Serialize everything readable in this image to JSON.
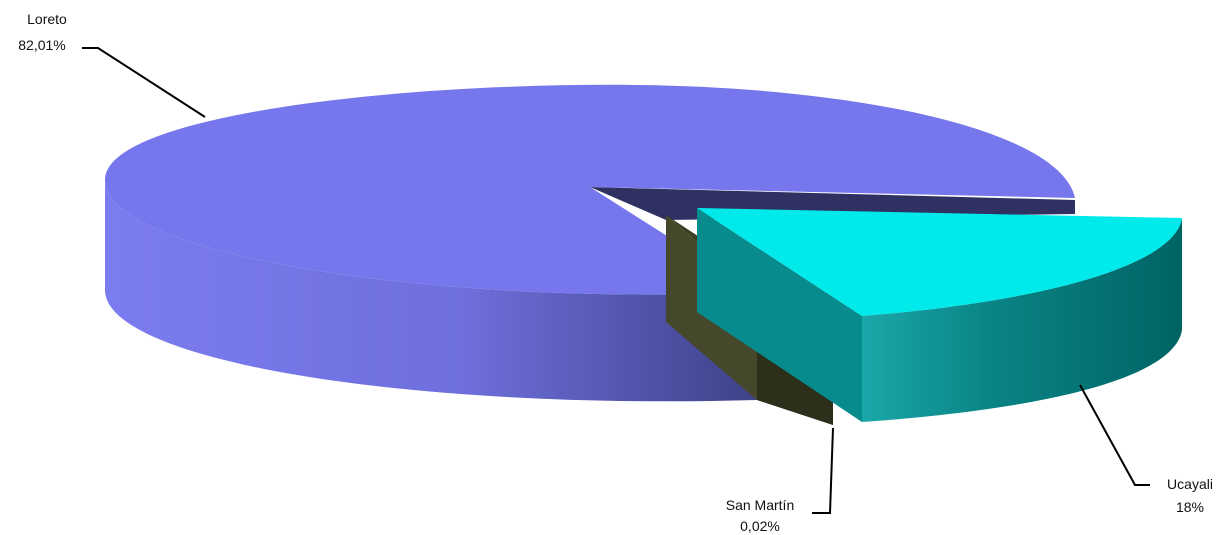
{
  "chart_data": {
    "type": "pie",
    "title": "",
    "three_d": true,
    "legend": "none",
    "slices": [
      {
        "name": "Loreto",
        "label": "82,01%",
        "value": 82.01,
        "color": "#7677ec",
        "exploded": false
      },
      {
        "name": "Ucayali",
        "label": "18%",
        "value": 18,
        "color": "#00eaec",
        "exploded": true
      },
      {
        "name": "San Martín",
        "label": "0,02%",
        "value": 0.02,
        "color": "#45482a",
        "exploded": true
      }
    ]
  }
}
